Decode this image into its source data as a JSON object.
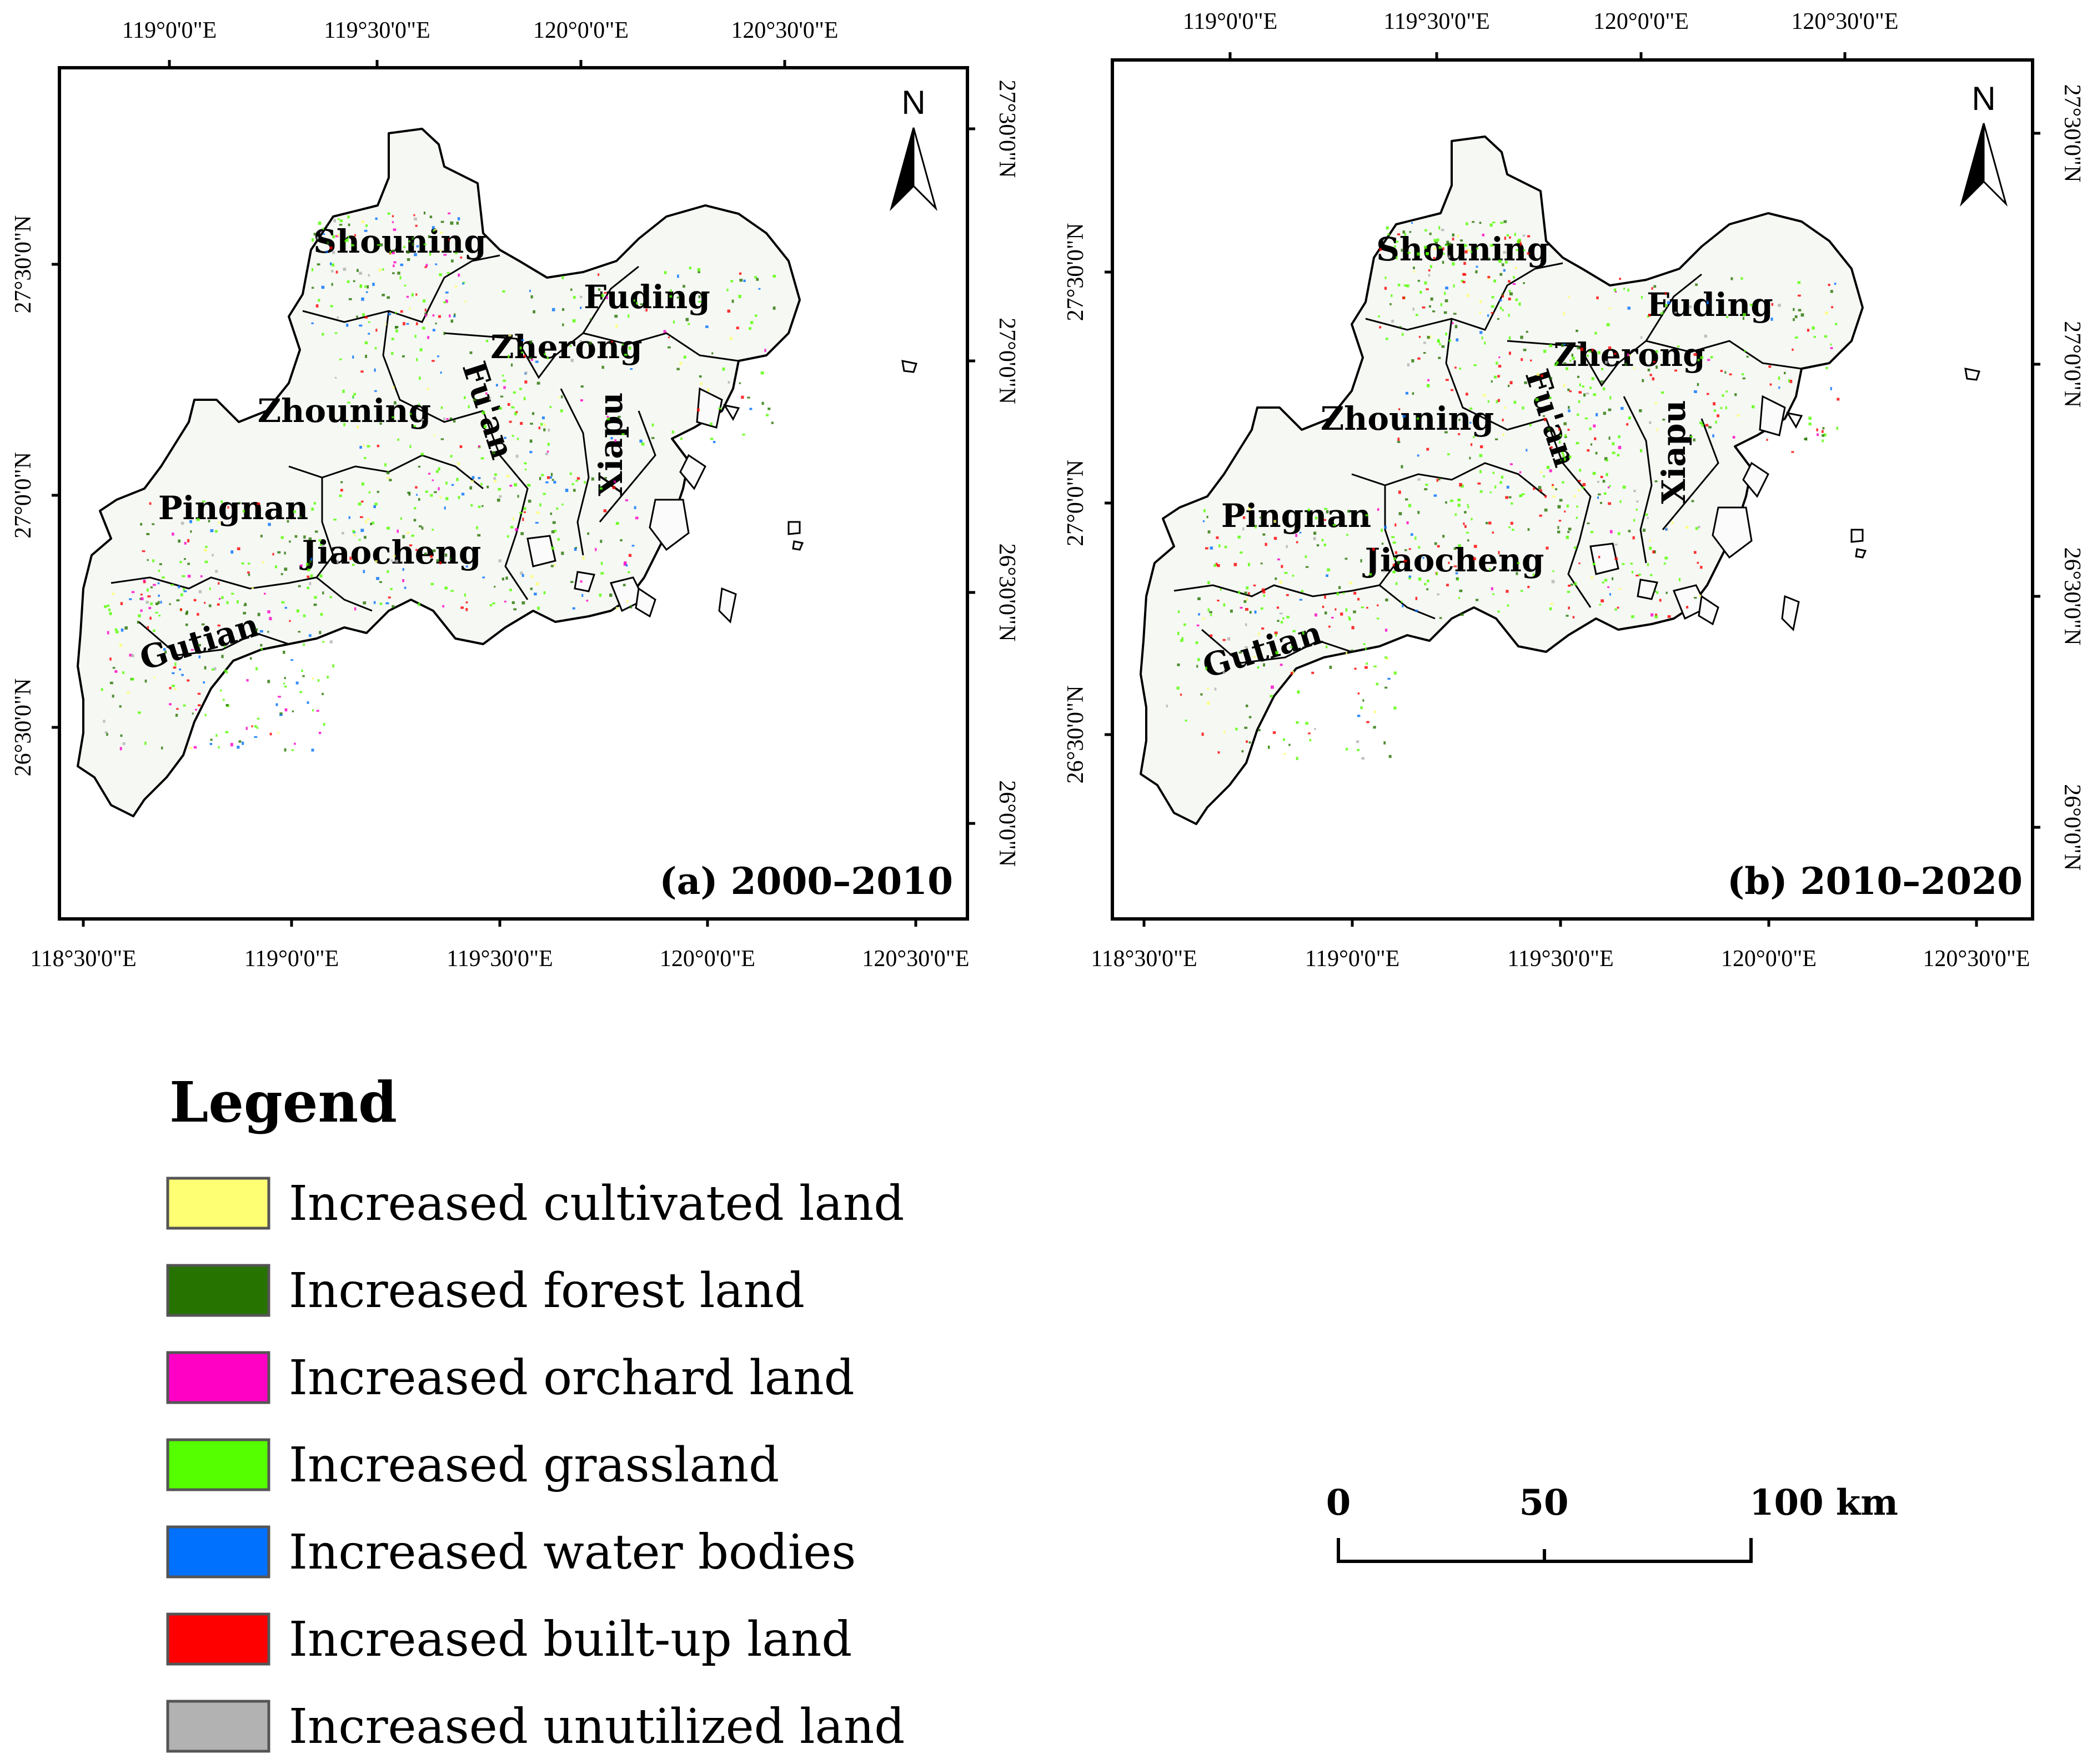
{
  "panels": [
    {
      "id": "a",
      "title": "(a) 2000–2010",
      "top_lon_labels": [
        "119°0'0\"E",
        "119°30'0\"E",
        "120°0'0\"E",
        "120°30'0\"E"
      ],
      "bottom_lon_labels": [
        "118°30'0\"E",
        "119°0'0\"E",
        "119°30'0\"E",
        "120°0'0\"E",
        "120°30'0\"E"
      ],
      "left_lat_labels": [
        "27°30'0\"N",
        "27°0'0\"N",
        "26°30'0\"N"
      ],
      "right_lat_labels": [
        "27°30'0\"N",
        "27°0'0\"N",
        "26°30'0\"N",
        "26°0'0\"N"
      ]
    },
    {
      "id": "b",
      "title": "(b) 2010–2020",
      "top_lon_labels": [
        "119°0'0\"E",
        "119°30'0\"E",
        "120°0'0\"E",
        "120°30'0\"E"
      ],
      "bottom_lon_labels": [
        "118°30'0\"E",
        "119°0'0\"E",
        "119°30'0\"E",
        "120°0'0\"E",
        "120°30'0\"E"
      ],
      "left_lat_labels": [
        "27°30'0\"N",
        "27°0'0\"N",
        "26°30'0\"N"
      ],
      "right_lat_labels": [
        "27°30'0\"N",
        "27°0'0\"N",
        "26°30'0\"N",
        "26°0'0\"N"
      ]
    }
  ],
  "counties": [
    "Shouning",
    "Fuding",
    "Zherong",
    "Zhouning",
    "Fu'an",
    "Xiapu",
    "Pingnan",
    "Jiaocheng",
    "Gutian"
  ],
  "north_arrow": {
    "label": "N"
  },
  "legend": {
    "title": "Legend",
    "items": [
      {
        "label": "Increased cultivated land",
        "color": "#ffff73"
      },
      {
        "label": "Increased forest land",
        "color": "#267300"
      },
      {
        "label": "Increased orchard land",
        "color": "#ff00c5"
      },
      {
        "label": "Increased grassland",
        "color": "#55ff00"
      },
      {
        "label": "Increased water bodies",
        "color": "#0070ff"
      },
      {
        "label": "Increased built-up land",
        "color": "#ff0000"
      },
      {
        "label": "Increased unutilized land",
        "color": "#b2b2b2"
      }
    ]
  },
  "scale_bar": {
    "labels": [
      "0",
      "50",
      "100 km"
    ]
  }
}
